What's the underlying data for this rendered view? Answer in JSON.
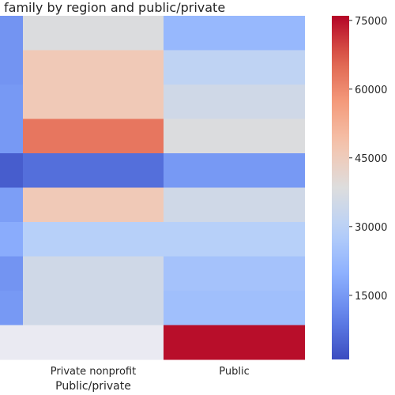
{
  "chart_data": {
    "type": "heatmap",
    "title": "family by region and public/private",
    "xlabel": "Public/private",
    "ylabel": "",
    "columns": [
      "",
      "Private nonprofit",
      "Public"
    ],
    "column_ticks_shown": [
      "Private nonprofit",
      "Public"
    ],
    "rows": 10,
    "values": [
      [
        14000,
        38000,
        22000
      ],
      [
        14000,
        46000,
        31000
      ],
      [
        15000,
        46000,
        35000
      ],
      [
        15000,
        63000,
        38000
      ],
      [
        4000,
        7000,
        15000
      ],
      [
        16000,
        46000,
        35000
      ],
      [
        19000,
        29000,
        29000
      ],
      [
        14000,
        35000,
        25000
      ],
      [
        15000,
        35000,
        24000
      ],
      [
        null,
        null,
        75000
      ]
    ],
    "missing_color": "#eaeaf2",
    "colorbar": {
      "colormap": "coolwarm",
      "min": 1000,
      "max": 76000,
      "ticks": [
        15000,
        30000,
        45000,
        60000,
        75000
      ],
      "tick_labels": [
        "15000",
        "30000",
        "45000",
        "60000",
        "75000"
      ]
    }
  }
}
